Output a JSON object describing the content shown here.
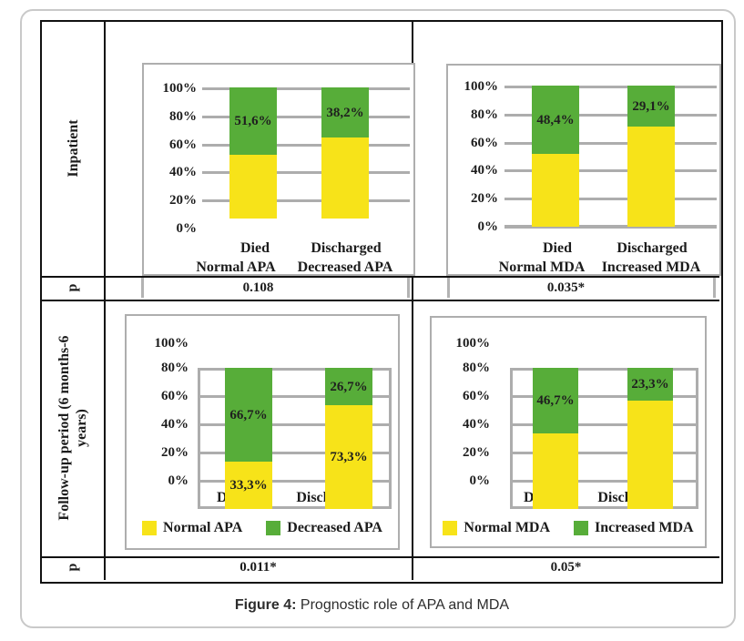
{
  "figure": {
    "caption_prefix": "Figure 4:",
    "caption_text": " Prognostic role of APA and MDA"
  },
  "table": {
    "row_labels": {
      "inpatient": "Inpatient",
      "p_top": "p",
      "followup": "Follow-up period (6 months-6 years)",
      "p_bottom": "p"
    }
  },
  "colors": {
    "yellow": "#F7E319",
    "green": "#57AD39",
    "grid": "#ADADAD",
    "table_border": "#111111",
    "outer_border": "#C9C9C9"
  },
  "chart_data": [
    {
      "id": "inpatient-apa",
      "type": "stacked-bar-100",
      "group": "Inpatient",
      "categories": [
        "Died",
        "Discharged"
      ],
      "series": [
        {
          "name": "Normal APA",
          "color_key": "yellow",
          "values": [
            48.4,
            61.8
          ],
          "segment_labels": [
            "",
            ""
          ]
        },
        {
          "name": "Decreased APA",
          "color_key": "green",
          "values": [
            51.6,
            38.2
          ],
          "segment_labels": [
            "51,6%",
            "38,2%"
          ]
        }
      ],
      "y_ticks": [
        "100%",
        "80%",
        "60%",
        "40%",
        "20%",
        "0%"
      ],
      "ylim": [
        0,
        100
      ],
      "grid": true,
      "legend": [
        "Normal APA",
        "Decreased APA"
      ],
      "legend_position": "bottom",
      "p_value": "0.108"
    },
    {
      "id": "inpatient-mda",
      "type": "stacked-bar-100",
      "group": "Inpatient",
      "categories": [
        "Died",
        "Discharged"
      ],
      "series": [
        {
          "name": "Normal MDA",
          "color_key": "yellow",
          "values": [
            51.6,
            70.9
          ],
          "segment_labels": [
            "",
            ""
          ]
        },
        {
          "name": "Increased MDA",
          "color_key": "green",
          "values": [
            48.4,
            29.1
          ],
          "segment_labels": [
            "48,4%",
            "29,1%"
          ]
        }
      ],
      "y_ticks": [
        "100%",
        "80%",
        "60%",
        "40%",
        "20%",
        "0%"
      ],
      "ylim": [
        0,
        100
      ],
      "grid": true,
      "legend": [
        "Normal MDA",
        "Increased MDA"
      ],
      "legend_position": "bottom",
      "p_value": "0.035*"
    },
    {
      "id": "followup-apa",
      "type": "stacked-bar-100",
      "group": "Follow-up period (6 months-6 years)",
      "categories": [
        "Died",
        "Discharged"
      ],
      "series": [
        {
          "name": "Normal APA",
          "color_key": "yellow",
          "values": [
            33.3,
            73.3
          ],
          "segment_labels": [
            "33,3%",
            "73,3%"
          ]
        },
        {
          "name": "Decreased APA",
          "color_key": "green",
          "values": [
            66.7,
            26.7
          ],
          "segment_labels": [
            "66,7%",
            "26,7%"
          ]
        }
      ],
      "y_ticks": [
        "100%",
        "80%",
        "60%",
        "40%",
        "20%",
        "0%"
      ],
      "ylim": [
        0,
        100
      ],
      "grid": true,
      "legend": [
        "Normal APA",
        "Decreased APA"
      ],
      "legend_position": "bottom",
      "p_value": "0.011*"
    },
    {
      "id": "followup-mda",
      "type": "stacked-bar-100",
      "group": "Follow-up period (6 months-6 years)",
      "categories": [
        "Died",
        "Discharged"
      ],
      "series": [
        {
          "name": "Normal MDA",
          "color_key": "yellow",
          "values": [
            53.3,
            76.7
          ],
          "segment_labels": [
            "",
            ""
          ]
        },
        {
          "name": "Increased MDA",
          "color_key": "green",
          "values": [
            46.7,
            23.3
          ],
          "segment_labels": [
            "46,7%",
            "23,3%"
          ]
        }
      ],
      "y_ticks": [
        "100%",
        "80%",
        "60%",
        "40%",
        "20%",
        "0%"
      ],
      "ylim": [
        0,
        100
      ],
      "grid": true,
      "legend": [
        "Normal MDA",
        "Increased MDA"
      ],
      "legend_position": "bottom",
      "p_value": "0.05*"
    }
  ]
}
